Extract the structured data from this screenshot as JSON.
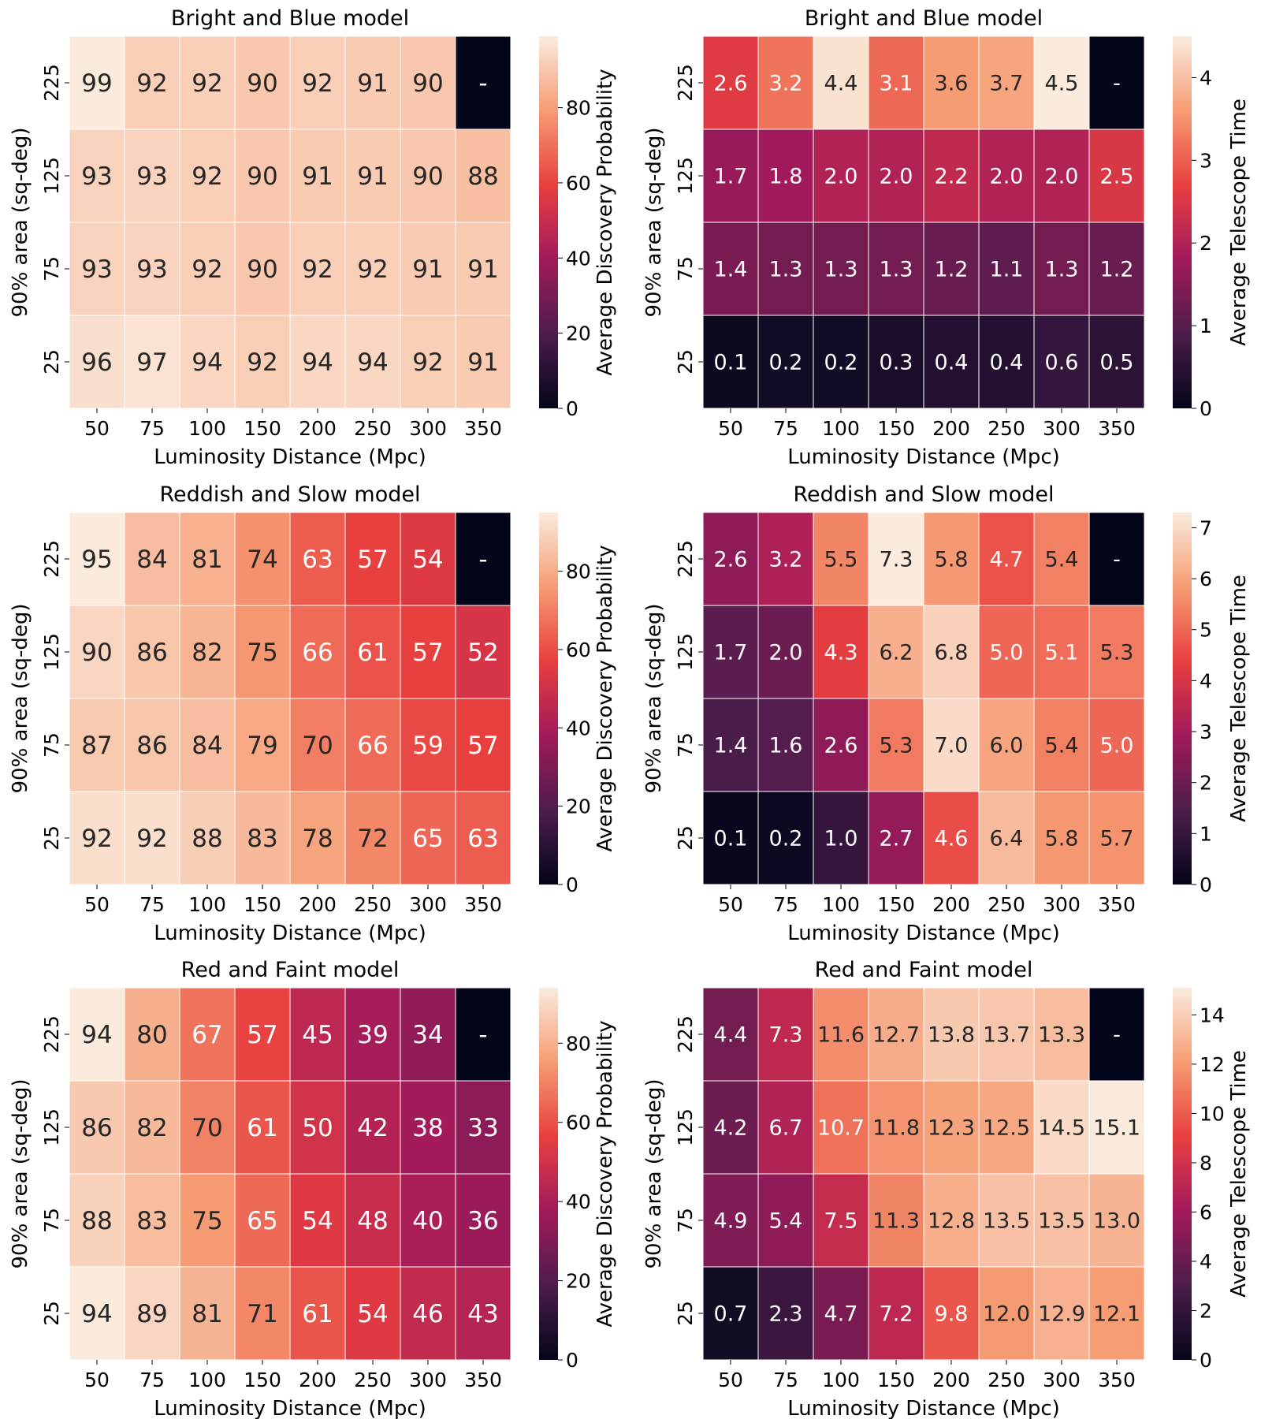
{
  "colorbar_labels": {
    "probability": "Average Discovery Probability",
    "time": "Average Telescope Time"
  },
  "colors": {
    "scale": [
      "#03051a",
      "#4c1d4b",
      "#a11a5b",
      "#e83f3f",
      "#f69c73",
      "#faebdd"
    ],
    "dark_text": "#262626",
    "light_text": "#ffffff"
  },
  "chart_data": [
    {
      "type": "heatmap",
      "metric": "probability",
      "title": "Bright and Blue model",
      "xlabel": "Luminosity Distance (Mpc)",
      "ylabel": "90% area (sq-deg)",
      "categories": [
        "50",
        "75",
        "100",
        "150",
        "200",
        "250",
        "300",
        "350"
      ],
      "rows": [
        "225",
        "125",
        "75",
        "25"
      ],
      "values": [
        [
          "99",
          "92",
          "92",
          "90",
          "92",
          "91",
          "90",
          "-"
        ],
        [
          "93",
          "93",
          "92",
          "90",
          "91",
          "91",
          "90",
          "88"
        ],
        [
          "93",
          "93",
          "92",
          "90",
          "92",
          "92",
          "91",
          "91"
        ],
        [
          "96",
          "97",
          "94",
          "92",
          "94",
          "94",
          "92",
          "91"
        ]
      ],
      "vmin": 0,
      "vmax": 99,
      "cbar_ticks": [
        "0",
        "20",
        "40",
        "60",
        "80"
      ]
    },
    {
      "type": "heatmap",
      "metric": "time",
      "title": "Bright and Blue model",
      "xlabel": "Luminosity Distance (Mpc)",
      "ylabel": "90% area (sq-deg)",
      "categories": [
        "50",
        "75",
        "100",
        "150",
        "200",
        "250",
        "300",
        "350"
      ],
      "rows": [
        "225",
        "125",
        "75",
        "25"
      ],
      "values": [
        [
          "2.6",
          "3.2",
          "4.4",
          "3.1",
          "3.6",
          "3.7",
          "4.5",
          "-"
        ],
        [
          "1.7",
          "1.8",
          "2.0",
          "2.0",
          "2.2",
          "2.0",
          "2.0",
          "2.5"
        ],
        [
          "1.4",
          "1.3",
          "1.3",
          "1.3",
          "1.2",
          "1.1",
          "1.3",
          "1.2"
        ],
        [
          "0.1",
          "0.2",
          "0.2",
          "0.3",
          "0.4",
          "0.4",
          "0.6",
          "0.5"
        ]
      ],
      "vmin": 0,
      "vmax": 4.5,
      "cbar_ticks": [
        "0",
        "1",
        "2",
        "3",
        "4"
      ]
    },
    {
      "type": "heatmap",
      "metric": "probability",
      "title": "Reddish and Slow model",
      "xlabel": "Luminosity Distance (Mpc)",
      "ylabel": "90% area (sq-deg)",
      "categories": [
        "50",
        "75",
        "100",
        "150",
        "200",
        "250",
        "300",
        "350"
      ],
      "rows": [
        "225",
        "125",
        "75",
        "25"
      ],
      "values": [
        [
          "95",
          "84",
          "81",
          "74",
          "63",
          "57",
          "54",
          "-"
        ],
        [
          "90",
          "86",
          "82",
          "75",
          "66",
          "61",
          "57",
          "52"
        ],
        [
          "87",
          "86",
          "84",
          "79",
          "70",
          "66",
          "59",
          "57"
        ],
        [
          "92",
          "92",
          "88",
          "83",
          "78",
          "72",
          "65",
          "63"
        ]
      ],
      "vmin": 0,
      "vmax": 95,
      "cbar_ticks": [
        "0",
        "20",
        "40",
        "60",
        "80"
      ]
    },
    {
      "type": "heatmap",
      "metric": "time",
      "title": "Reddish and Slow model",
      "xlabel": "Luminosity Distance (Mpc)",
      "ylabel": "90% area (sq-deg)",
      "categories": [
        "50",
        "75",
        "100",
        "150",
        "200",
        "250",
        "300",
        "350"
      ],
      "rows": [
        "225",
        "125",
        "75",
        "25"
      ],
      "values": [
        [
          "2.6",
          "3.2",
          "5.5",
          "7.3",
          "5.8",
          "4.7",
          "5.4",
          "-"
        ],
        [
          "1.7",
          "2.0",
          "4.3",
          "6.2",
          "6.8",
          "5.0",
          "5.1",
          "5.3"
        ],
        [
          "1.4",
          "1.6",
          "2.6",
          "5.3",
          "7.0",
          "6.0",
          "5.4",
          "5.0"
        ],
        [
          "0.1",
          "0.2",
          "1.0",
          "2.7",
          "4.6",
          "6.4",
          "5.8",
          "5.7"
        ]
      ],
      "vmin": 0,
      "vmax": 7.3,
      "cbar_ticks": [
        "0",
        "1",
        "2",
        "3",
        "4",
        "5",
        "6",
        "7"
      ]
    },
    {
      "type": "heatmap",
      "metric": "probability",
      "title": "Red and Faint model",
      "xlabel": "Luminosity Distance (Mpc)",
      "ylabel": "90% area (sq-deg)",
      "categories": [
        "50",
        "75",
        "100",
        "150",
        "200",
        "250",
        "300",
        "350"
      ],
      "rows": [
        "225",
        "125",
        "75",
        "25"
      ],
      "values": [
        [
          "94",
          "80",
          "67",
          "57",
          "45",
          "39",
          "34",
          "-"
        ],
        [
          "86",
          "82",
          "70",
          "61",
          "50",
          "42",
          "38",
          "33"
        ],
        [
          "88",
          "83",
          "75",
          "65",
          "54",
          "48",
          "40",
          "36"
        ],
        [
          "94",
          "89",
          "81",
          "71",
          "61",
          "54",
          "46",
          "43"
        ]
      ],
      "vmin": 0,
      "vmax": 94,
      "cbar_ticks": [
        "0",
        "20",
        "40",
        "60",
        "80"
      ]
    },
    {
      "type": "heatmap",
      "metric": "time",
      "title": "Red and Faint model",
      "xlabel": "Luminosity Distance (Mpc)",
      "ylabel": "90% area (sq-deg)",
      "categories": [
        "50",
        "75",
        "100",
        "150",
        "200",
        "250",
        "300",
        "350"
      ],
      "rows": [
        "225",
        "125",
        "75",
        "25"
      ],
      "values": [
        [
          "4.4",
          "7.3",
          "11.6",
          "12.7",
          "13.8",
          "13.7",
          "13.3",
          "-"
        ],
        [
          "4.2",
          "6.7",
          "10.7",
          "11.8",
          "12.3",
          "12.5",
          "14.5",
          "15.1"
        ],
        [
          "4.9",
          "5.4",
          "7.5",
          "11.3",
          "12.8",
          "13.5",
          "13.5",
          "13.0"
        ],
        [
          "0.7",
          "2.3",
          "4.7",
          "7.2",
          "9.8",
          "12.0",
          "12.9",
          "12.1"
        ]
      ],
      "vmin": 0,
      "vmax": 15.1,
      "cbar_ticks": [
        "0",
        "2",
        "4",
        "6",
        "8",
        "10",
        "12",
        "14"
      ]
    }
  ]
}
